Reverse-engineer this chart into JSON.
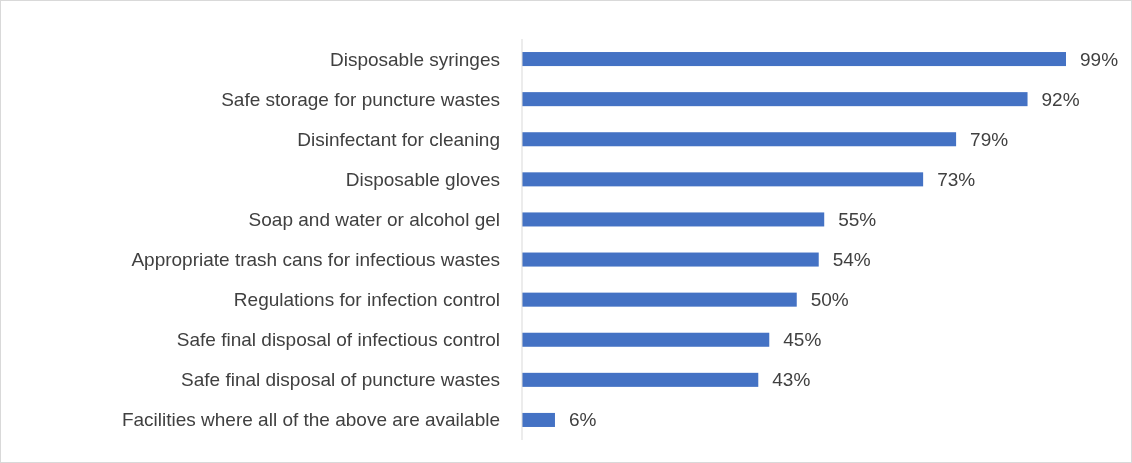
{
  "chart_data": {
    "type": "bar",
    "orientation": "horizontal",
    "categories": [
      "Disposable syringes",
      "Safe storage for puncture wastes",
      "Disinfectant for cleaning",
      "Disposable gloves",
      "Soap and water or alcohol gel",
      "Appropriate trash cans for infectious wastes",
      "Regulations for infection control",
      "Safe final disposal of infectious control",
      "Safe final disposal of puncture wastes",
      "Facilities where all of the above are available"
    ],
    "values": [
      99,
      92,
      79,
      73,
      55,
      54,
      50,
      45,
      43,
      6
    ],
    "value_labels": [
      "99%",
      "92%",
      "79%",
      "73%",
      "55%",
      "54%",
      "50%",
      "45%",
      "43%",
      "6%"
    ],
    "color": "#4472c4",
    "tick_labels": "y"
  }
}
